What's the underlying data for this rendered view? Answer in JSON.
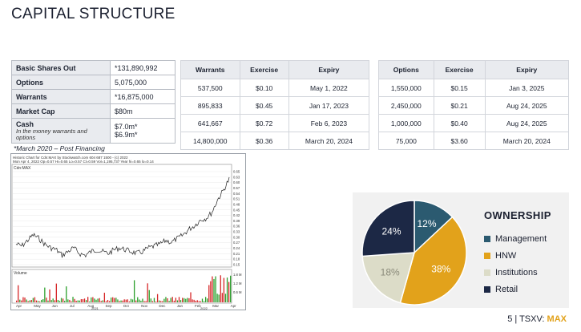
{
  "title": "CAPITAL STRUCTURE",
  "summary": [
    {
      "key": "Basic Shares Out",
      "value": "*131,890,992"
    },
    {
      "key": "Options",
      "value": "5,075,000"
    },
    {
      "key": "Warrants",
      "value": "*16,875,000"
    },
    {
      "key": "Market Cap",
      "value": "$80m"
    },
    {
      "key": "Cash",
      "sub": "In the money warrants and options",
      "value": "$7.0m*",
      "value2": "$6.9m*"
    }
  ],
  "note": "*March 2020 – Post Financing",
  "warrants": {
    "headers": [
      "Warrants",
      "Exercise",
      "Expiry"
    ],
    "rows": [
      [
        "537,500",
        "$0.10",
        "May 1, 2022"
      ],
      [
        "895,833",
        "$0.45",
        "Jan 17, 2023"
      ],
      [
        "641,667",
        "$0.72",
        "Feb 6, 2023"
      ],
      [
        "14,800,000",
        "$0.36",
        "March 20, 2024"
      ]
    ]
  },
  "options": {
    "headers": [
      "Options",
      "Exercise",
      "Expiry"
    ],
    "rows": [
      [
        "1,550,000",
        "$0.15",
        "Jan 3, 2025"
      ],
      [
        "2,450,000",
        "$0.21",
        "Aug 24, 2025"
      ],
      [
        "1,000,000",
        "$0.40",
        "Aug 24, 2025"
      ],
      [
        "75,000",
        "$3.60",
        "March 20, 2024"
      ]
    ]
  },
  "stock_chart": {
    "header1": "Historic Chart for Cdn:MAX by Stockwatch.com 604 687 1500 - (c) 2022",
    "header2": "Mon Apr 4, 2022  Op=0.57  Hi=0.65  Lo=0.57  Cl=0.59  Vol=1,195,737  Year hi=0.65 lo=0.14",
    "symbol": "Cdn:MAX",
    "volume_label": "Volume",
    "price_ticks": [
      "0.65",
      "0.63",
      "0.60",
      "0.57",
      "0.54",
      "0.51",
      "0.48",
      "0.45",
      "0.42",
      "0.39",
      "0.36",
      "0.33",
      "0.30",
      "0.27",
      "0.24",
      "0.21",
      "0.18",
      "0.15"
    ],
    "volume_ticks": [
      "1.8 M",
      "1.2 M",
      "0.6 M"
    ],
    "months": [
      "Apr",
      "May",
      "Jun",
      "Jul",
      "Aug",
      "Sep",
      "Oct",
      "Nov",
      "Dec",
      "Jan",
      "Feb",
      "Mar",
      "Apr"
    ],
    "years": [
      "2021",
      "2022"
    ],
    "colors": {
      "price": "#222222",
      "up": "#2ca02c",
      "down": "#d62728"
    }
  },
  "ownership": {
    "title": "OWNERSHIP",
    "slices": [
      {
        "label": "Management",
        "value": 12,
        "display": "12%",
        "color": "#2b5a70"
      },
      {
        "label": "HNW",
        "value": 38,
        "display": "38%",
        "color": "#e2a21b"
      },
      {
        "label": "Institutions",
        "value": 18,
        "display": "18%",
        "color": "#dcdcc8"
      },
      {
        "label": "Retail",
        "value": 24,
        "display": "24%",
        "color": "#1c2845"
      }
    ]
  },
  "footer": {
    "page": "5 | TSXV:",
    "ticker": "MAX"
  }
}
